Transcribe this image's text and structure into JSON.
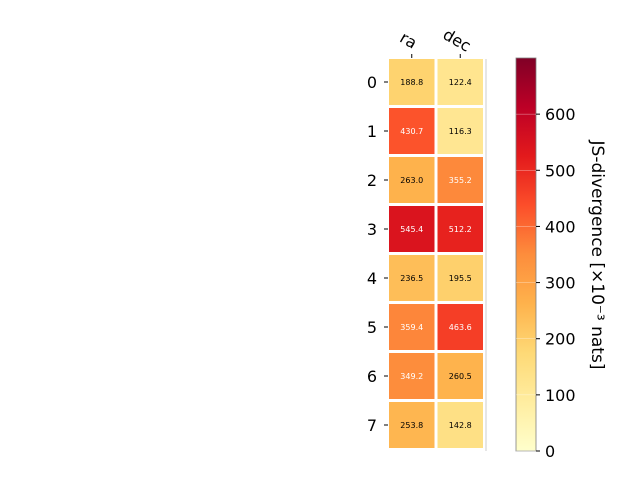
{
  "chart_data": {
    "type": "heatmap",
    "columns": [
      "ra",
      "dec"
    ],
    "rows": [
      "0",
      "1",
      "2",
      "3",
      "4",
      "5",
      "6",
      "7"
    ],
    "values": [
      [
        188.8,
        122.4
      ],
      [
        430.7,
        116.3
      ],
      [
        263.0,
        355.2
      ],
      [
        545.4,
        512.2
      ],
      [
        236.5,
        195.5
      ],
      [
        359.4,
        463.6
      ],
      [
        349.2,
        260.5
      ],
      [
        253.8,
        142.8
      ]
    ],
    "cell_labels": [
      [
        "188.8",
        "122.4"
      ],
      [
        "430.7",
        "116.3"
      ],
      [
        "263.0",
        "355.2"
      ],
      [
        "545.4",
        "512.2"
      ],
      [
        "236.5",
        "195.5"
      ],
      [
        "359.4",
        "463.6"
      ],
      [
        "349.2",
        "260.5"
      ],
      [
        "253.8",
        "142.8"
      ]
    ],
    "colorbar": {
      "label": "JS-divergence [×10⁻³ nats]",
      "range": [
        0,
        700
      ],
      "ticks": [
        "0",
        "100",
        "200",
        "300",
        "400",
        "500",
        "600"
      ],
      "colormap": "YlOrRd"
    },
    "grid": false
  }
}
